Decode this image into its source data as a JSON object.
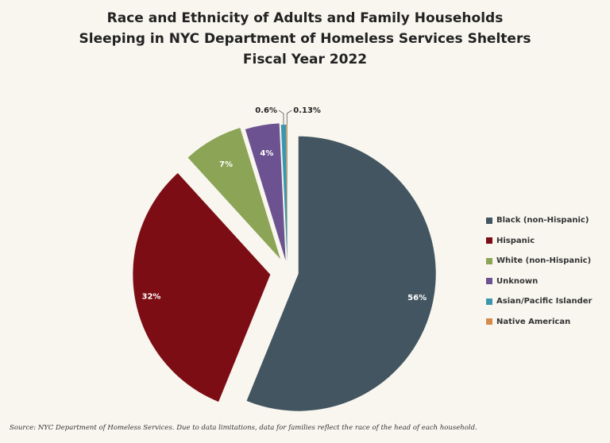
{
  "chart_data": {
    "type": "pie",
    "title": [
      "Race and Ethnicity of Adults and Family Households",
      "Sleeping in NYC Department of Homeless Services Shelters",
      "Fiscal Year 2022"
    ],
    "slices": [
      {
        "name": "Black (non-Hispanic)",
        "value": 56,
        "label": "56%",
        "color": "#435560"
      },
      {
        "name": "Hispanic",
        "value": 32,
        "label": "32%",
        "color": "#7d0d14"
      },
      {
        "name": "White (non-Hispanic)",
        "value": 7,
        "label": "7%",
        "color": "#8ba456"
      },
      {
        "name": "Unknown",
        "value": 4,
        "label": "4%",
        "color": "#6c5290"
      },
      {
        "name": "Asian/Pacific Islander",
        "value": 0.6,
        "label": "0.6%",
        "color": "#3a97ae"
      },
      {
        "name": "Native American",
        "value": 0.13,
        "label": "0.13%",
        "color": "#d58b4a"
      }
    ],
    "legend_position": "right",
    "source": "Source: NYC Department of Homeless Services. Due to data limitations, data for families reflect the race of the head of each household."
  }
}
